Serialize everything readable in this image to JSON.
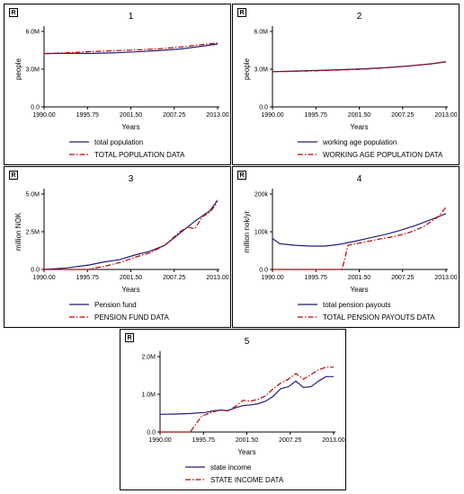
{
  "chart_data": [
    {
      "type": "line",
      "panel_tag": "R",
      "title": "1",
      "xlabel": "Years",
      "ylabel": "people",
      "x_ticks": [
        "1990.00",
        "1995.75",
        "2001.50",
        "2007.25",
        "2013.00"
      ],
      "y_ticks": [
        "0.0",
        "3.0M",
        "6.0M"
      ],
      "xlim": [
        1990,
        2013
      ],
      "ylim": [
        0,
        6000000
      ],
      "x": [
        1990,
        1993,
        1996,
        1999,
        2002,
        2005,
        2008,
        2011,
        2013
      ],
      "series": [
        {
          "name": "total population",
          "style": "solid",
          "color": "#1f1f7a",
          "values": [
            4240000,
            4260000,
            4250000,
            4290000,
            4370000,
            4470000,
            4600000,
            4830000,
            5000000
          ]
        },
        {
          "name": "TOTAL POPULATION DATA",
          "style": "dashdot",
          "color": "#c00000",
          "values": [
            4240000,
            4300000,
            4390000,
            4460000,
            4520000,
            4610000,
            4760000,
            4960000,
            5080000
          ]
        }
      ]
    },
    {
      "type": "line",
      "panel_tag": "R",
      "title": "2",
      "xlabel": "Years",
      "ylabel": "people",
      "x_ticks": [
        "1990.00",
        "1995.75",
        "2001.50",
        "2007.25",
        "2013.00"
      ],
      "y_ticks": [
        "0.0",
        "3.0M",
        "6.0M"
      ],
      "xlim": [
        1990,
        2013
      ],
      "ylim": [
        0,
        6000000
      ],
      "x": [
        1990,
        1993,
        1996,
        1999,
        2002,
        2005,
        2008,
        2011,
        2013
      ],
      "series": [
        {
          "name": "working age population",
          "style": "solid",
          "color": "#1f1f7a",
          "values": [
            2800000,
            2850000,
            2900000,
            2960000,
            3030000,
            3120000,
            3250000,
            3420000,
            3580000
          ]
        },
        {
          "name": "WORKING AGE POPULATION DATA",
          "style": "dashdot",
          "color": "#c00000",
          "values": [
            2800000,
            2830000,
            2870000,
            2930000,
            3000000,
            3100000,
            3240000,
            3420000,
            3600000
          ]
        }
      ]
    },
    {
      "type": "line",
      "panel_tag": "R",
      "title": "3",
      "xlabel": "Years",
      "ylabel": "million NOK",
      "x_ticks": [
        "1990.00",
        "1995.75",
        "2001.50",
        "2007.25",
        "2013.00"
      ],
      "y_ticks": [
        "0.0",
        "2.5M",
        "5.0M"
      ],
      "xlim": [
        1990,
        2013
      ],
      "ylim": [
        0,
        5000000
      ],
      "series": [
        {
          "name": "Pension fund",
          "style": "solid",
          "color": "#1f1f7a",
          "x": [
            1990,
            1993,
            1996,
            1998,
            2000,
            2002,
            2004,
            2006,
            2008,
            2010,
            2012,
            2013
          ],
          "values": [
            0,
            100000,
            300000,
            500000,
            650000,
            950000,
            1200000,
            1600000,
            2400000,
            3200000,
            3900000,
            4600000
          ]
        },
        {
          "name": "PENSION FUND DATA",
          "style": "dashdot",
          "color": "#c00000",
          "x": [
            1990,
            1996,
            1996.1,
            1998,
            2000,
            2002,
            2004,
            2006,
            2008,
            2009,
            2010,
            2011,
            2012,
            2013
          ],
          "values": [
            0,
            0,
            50000,
            200000,
            450000,
            800000,
            1100000,
            1600000,
            2500000,
            2800000,
            2700000,
            3500000,
            3800000,
            4450000
          ]
        }
      ]
    },
    {
      "type": "line",
      "panel_tag": "R",
      "title": "4",
      "xlabel": "Years",
      "ylabel": "million nok/yr",
      "x_ticks": [
        "1990.00",
        "1995.75",
        "2001.50",
        "2007.25",
        "2013.00"
      ],
      "y_ticks": [
        "0.0",
        "100k",
        "200k"
      ],
      "xlim": [
        1990,
        2013
      ],
      "ylim": [
        0,
        200000
      ],
      "series": [
        {
          "name": "total pension payouts",
          "style": "solid",
          "color": "#1f1f7a",
          "x": [
            1990,
            1991,
            1993,
            1995,
            1997,
            1999,
            2001,
            2003,
            2005,
            2007,
            2009,
            2011,
            2013
          ],
          "values": [
            82000,
            68000,
            64000,
            62000,
            62000,
            67000,
            75000,
            84000,
            93000,
            104000,
            117000,
            132000,
            148000
          ]
        },
        {
          "name": "TOTAL PENSION PAYOUTS DATA",
          "style": "dashdot",
          "color": "#c00000",
          "x": [
            1990,
            1999.2,
            1999.6,
            2000,
            2002,
            2004,
            2006,
            2008,
            2010,
            2012,
            2013
          ],
          "values": [
            0,
            0,
            30000,
            64000,
            72000,
            80000,
            87000,
            97000,
            113000,
            140000,
            165000
          ]
        }
      ]
    },
    {
      "type": "line",
      "panel_tag": "R",
      "title": "5",
      "xlabel": "Years",
      "ylabel": "",
      "x_ticks": [
        "1990.00",
        "1995.75",
        "2001.50",
        "2007.25",
        "2013.00"
      ],
      "y_ticks": [
        "0.0",
        "1.0M",
        "2.0M"
      ],
      "xlim": [
        1990,
        2013
      ],
      "ylim": [
        0,
        2000000
      ],
      "series": [
        {
          "name": "state income",
          "style": "solid",
          "color": "#1f1f7a",
          "x": [
            1990,
            1992,
            1994,
            1996,
            1997,
            1998,
            1999,
            2000,
            2001,
            2002,
            2003,
            2004,
            2005,
            2006,
            2007,
            2008,
            2009,
            2010,
            2011,
            2012,
            2013
          ],
          "values": [
            470000,
            475000,
            490000,
            520000,
            560000,
            580000,
            570000,
            640000,
            700000,
            720000,
            750000,
            820000,
            950000,
            1150000,
            1200000,
            1350000,
            1180000,
            1200000,
            1350000,
            1470000,
            1470000
          ]
        },
        {
          "name": "STATE INCOME DATA",
          "style": "dashdot",
          "color": "#c00000",
          "x": [
            1990,
            1994,
            1995.5,
            1996.5,
            1998,
            1999,
            2000,
            2001,
            2002,
            2003,
            2004,
            2005,
            2006,
            2007,
            2008,
            2009,
            2010,
            2011,
            2012,
            2013
          ],
          "values": [
            0,
            0,
            420000,
            500000,
            590000,
            560000,
            680000,
            840000,
            820000,
            870000,
            960000,
            1150000,
            1300000,
            1400000,
            1550000,
            1400000,
            1520000,
            1650000,
            1720000,
            1720000
          ]
        }
      ]
    }
  ]
}
